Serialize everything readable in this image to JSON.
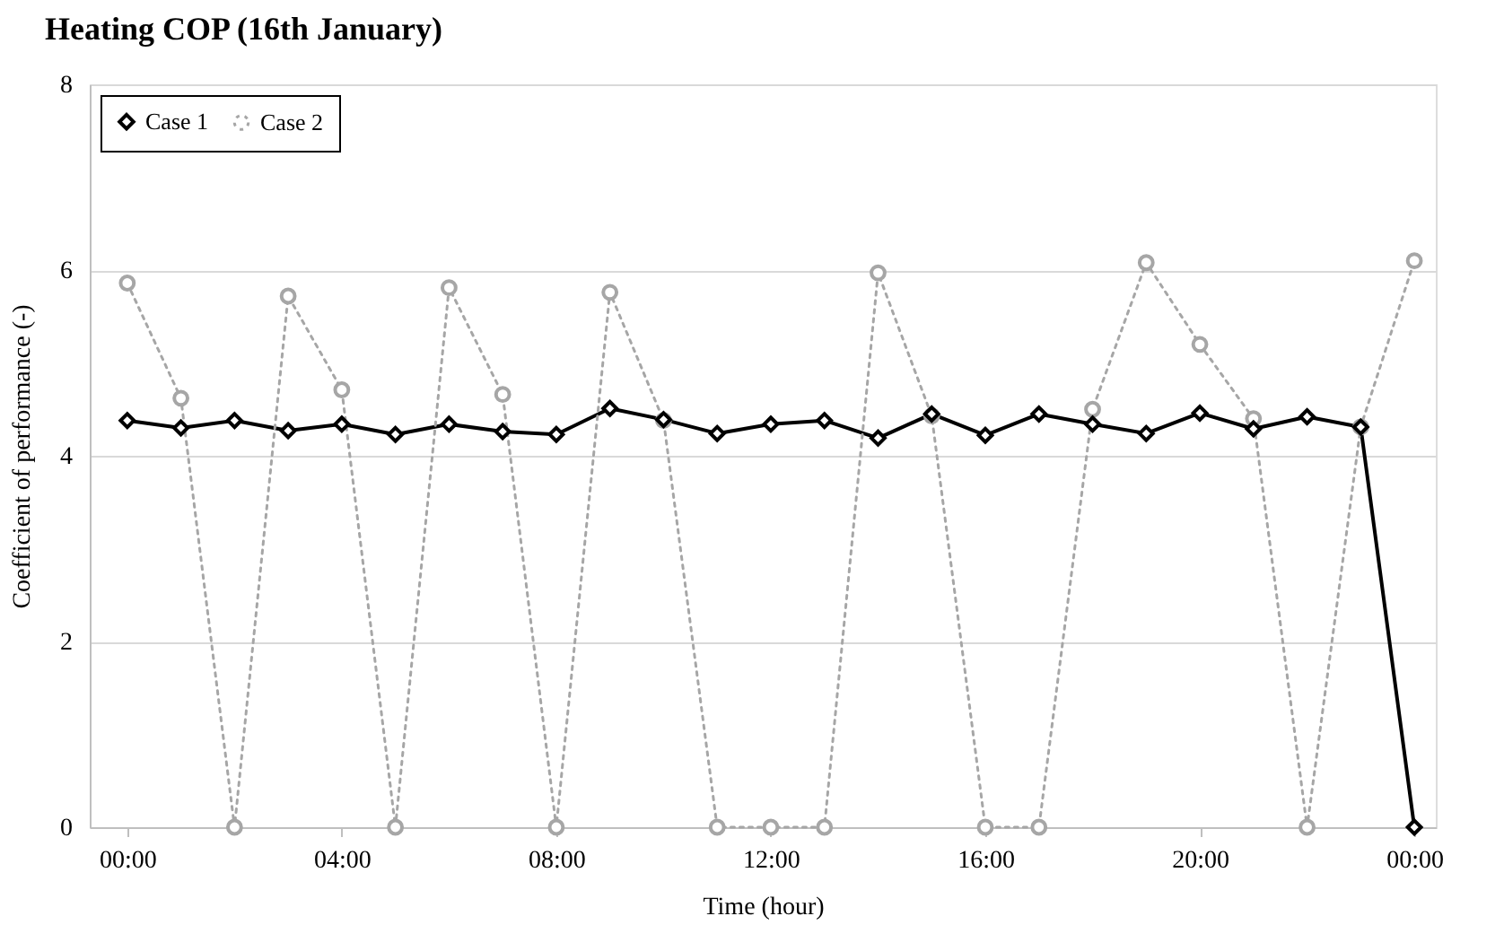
{
  "chart_data": {
    "type": "line",
    "title": "Heating COP (16th January)",
    "xlabel": "Time (hour)",
    "ylabel": "Coefficient of performance (-)",
    "x": [
      0,
      1,
      2,
      3,
      4,
      5,
      6,
      7,
      8,
      9,
      10,
      11,
      12,
      13,
      14,
      15,
      16,
      17,
      18,
      19,
      20,
      21,
      22,
      23,
      24
    ],
    "xlim": [
      -0.7,
      24.4
    ],
    "xticks": [
      {
        "value": 0,
        "label": "00:00"
      },
      {
        "value": 4,
        "label": "04:00"
      },
      {
        "value": 8,
        "label": "08:00"
      },
      {
        "value": 12,
        "label": "12:00"
      },
      {
        "value": 16,
        "label": "16:00"
      },
      {
        "value": 20,
        "label": "20:00"
      },
      {
        "value": 24,
        "label": "00:00"
      }
    ],
    "ylim": [
      0,
      8
    ],
    "yticks": [
      0,
      2,
      4,
      6,
      8
    ],
    "grid": "y",
    "legend": "top left",
    "series": [
      {
        "name": "Case 1",
        "color": "#000000",
        "marker": "diamond",
        "line_style": "solid",
        "values": [
          4.38,
          4.3,
          4.38,
          4.27,
          4.34,
          4.23,
          4.34,
          4.26,
          4.23,
          4.51,
          4.39,
          4.24,
          4.34,
          4.38,
          4.19,
          4.45,
          4.22,
          4.45,
          4.34,
          4.24,
          4.46,
          4.29,
          4.42,
          4.31,
          0
        ]
      },
      {
        "name": "Case 2",
        "color": "#a6a6a6",
        "marker": "circle",
        "line_style": "dotted",
        "values": [
          5.86,
          4.62,
          0,
          5.72,
          4.71,
          0,
          5.81,
          4.66,
          0,
          5.76,
          4.38,
          0,
          0,
          0,
          5.97,
          4.43,
          0,
          0,
          4.5,
          6.08,
          5.2,
          4.4,
          0,
          4.31,
          6.1
        ]
      }
    ]
  }
}
